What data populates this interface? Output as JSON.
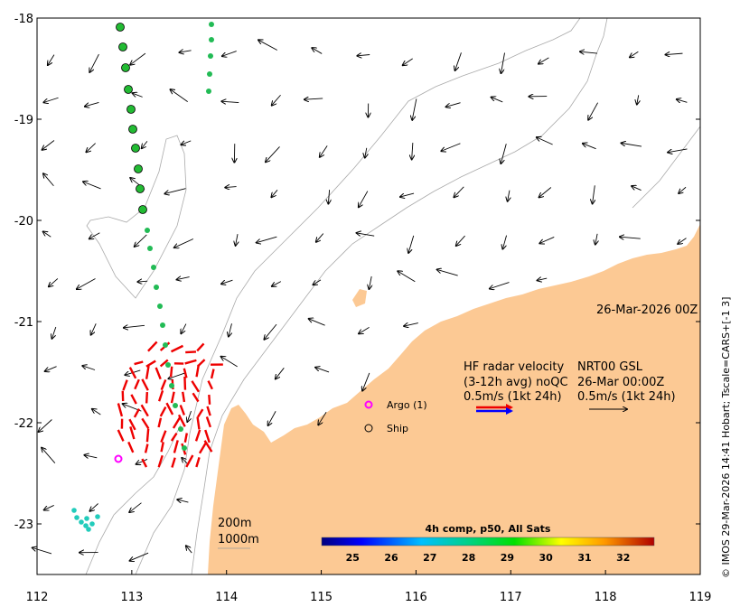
{
  "map": {
    "x_ticks": [
      "112",
      "113",
      "114",
      "115",
      "116",
      "117",
      "118",
      "119"
    ],
    "y_ticks": [
      "-18",
      "-19",
      "-20",
      "-21",
      "-22",
      "-23"
    ],
    "lon_range": [
      112,
      119
    ],
    "lat_range": [
      -23.5,
      -18
    ],
    "land_color": "#fcc994",
    "datetime_label": "26-Mar-2026 00Z",
    "credit": "© IMOS 29-Mar-2026 14:41 Hobart; Tscale=CARS+[-1 3]"
  },
  "legend": {
    "argo_label": "Argo (1)",
    "ship_label": "Ship",
    "hf_line1": "HF radar velocity",
    "hf_line2": "(3-12h avg) noQC",
    "hf_line3": "0.5m/s (1kt 24h)",
    "nrt_line1": "NRT00 GSL",
    "nrt_line2": "26-Mar 00:00Z",
    "nrt_line3": "0.5m/s (1kt 24h)",
    "depth_200": "200m",
    "depth_1000": "1000m"
  },
  "colorbar": {
    "title": "4h comp, p50, All Sats",
    "ticks": [
      "25",
      "26",
      "27",
      "28",
      "29",
      "30",
      "31",
      "32"
    ],
    "range": [
      24.2,
      32.8
    ]
  }
}
